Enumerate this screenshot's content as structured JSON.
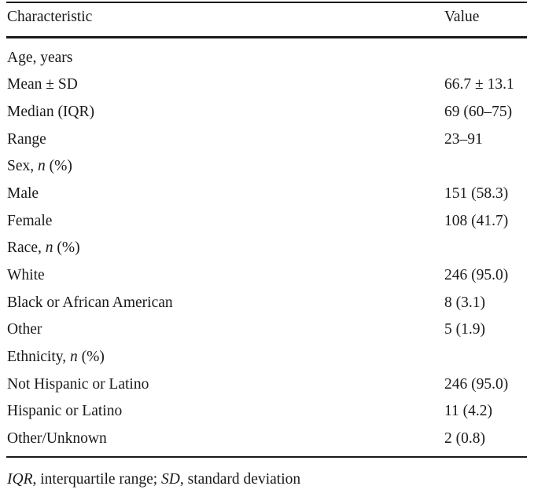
{
  "table": {
    "header": {
      "characteristic": "Characteristic",
      "value": "Value"
    },
    "sections": {
      "age": {
        "label": "Age, years",
        "rows": [
          {
            "label": "Mean ± SD",
            "value": "66.7 ± 13.1"
          },
          {
            "label": "Median (IQR)",
            "value": "69 (60–75)"
          },
          {
            "label": "Range",
            "value": "23–91"
          }
        ]
      },
      "sex": {
        "label_prefix": "Sex, ",
        "label_italic": "n",
        "label_suffix": " (%)",
        "rows": [
          {
            "label": "Male",
            "value": "151 (58.3)"
          },
          {
            "label": "Female",
            "value": "108 (41.7)"
          }
        ]
      },
      "race": {
        "label_prefix": "Race, ",
        "label_italic": "n",
        "label_suffix": " (%)",
        "rows": [
          {
            "label": "White",
            "value": "246 (95.0)"
          },
          {
            "label": "Black or African American",
            "value": "8 (3.1)"
          },
          {
            "label": "Other",
            "value": "5 (1.9)"
          }
        ]
      },
      "ethnicity": {
        "label_prefix": "Ethnicity, ",
        "label_italic": "n",
        "label_suffix": " (%)",
        "rows": [
          {
            "label": "Not Hispanic or Latino",
            "value": "246 (95.0)"
          },
          {
            "label": "Hispanic or Latino",
            "value": "11 (4.2)"
          },
          {
            "label": "Other/Unknown",
            "value": "2 (0.8)"
          }
        ]
      }
    }
  },
  "footnote": {
    "abbr1": "IQR",
    "def1": ", interquartile range; ",
    "abbr2": "SD",
    "def2": ", standard deviation"
  }
}
